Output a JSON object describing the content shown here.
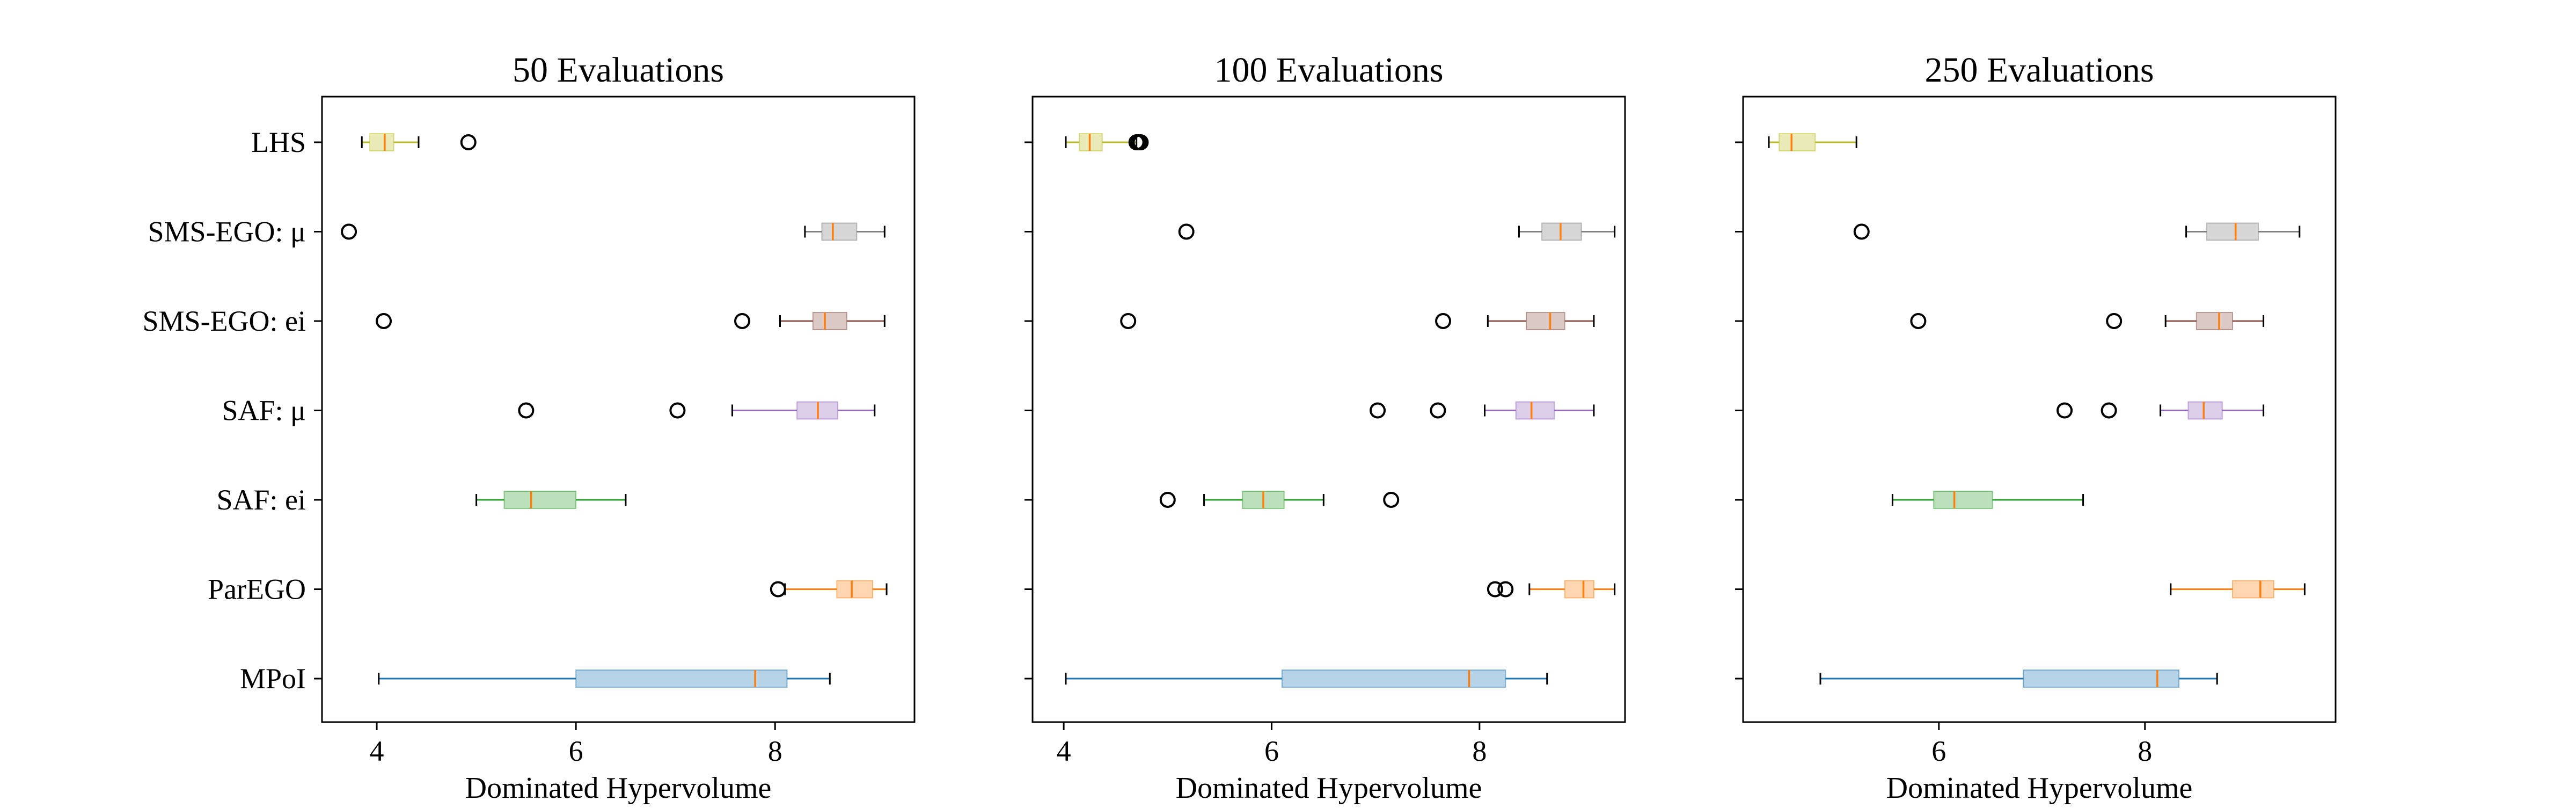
{
  "chart_data": [
    {
      "type": "boxplot",
      "orientation": "horizontal",
      "title": "50 Evaluations",
      "xlabel": "Dominated Hypervolume",
      "ylabel": "",
      "xlim": [
        3.45,
        9.4
      ],
      "xticks": [
        4,
        6,
        8
      ],
      "grid": false,
      "categories": [
        "LHS",
        "SMS-EGO: μ",
        "SMS-EGO: ei",
        "SAF: μ",
        "SAF: ei",
        "ParEGO",
        "MPoI"
      ],
      "boxes": [
        {
          "name": "LHS",
          "whislo": 3.85,
          "q1": 3.93,
          "med": 4.08,
          "q3": 4.17,
          "whishi": 4.42,
          "fliers": [
            4.92
          ]
        },
        {
          "name": "SMS-EGO: μ",
          "whislo": 8.3,
          "q1": 8.47,
          "med": 8.58,
          "q3": 8.82,
          "whishi": 9.1,
          "fliers": [
            3.72
          ]
        },
        {
          "name": "SMS-EGO: ei",
          "whislo": 8.05,
          "q1": 8.38,
          "med": 8.5,
          "q3": 8.72,
          "whishi": 9.1,
          "fliers": [
            4.07,
            7.67
          ]
        },
        {
          "name": "SAF: μ",
          "whislo": 7.57,
          "q1": 8.22,
          "med": 8.43,
          "q3": 8.63,
          "whishi": 9.0,
          "fliers": [
            5.5,
            7.02
          ]
        },
        {
          "name": "SAF: ei",
          "whislo": 5.0,
          "q1": 5.28,
          "med": 5.55,
          "q3": 6.0,
          "whishi": 6.5,
          "fliers": []
        },
        {
          "name": "ParEGO",
          "whislo": 8.1,
          "q1": 8.62,
          "med": 8.77,
          "q3": 8.98,
          "whishi": 9.12,
          "fliers": [
            8.03
          ]
        },
        {
          "name": "MPoI",
          "whislo": 4.02,
          "q1": 6.0,
          "med": 7.8,
          "q3": 8.12,
          "whishi": 8.55,
          "fliers": []
        }
      ]
    },
    {
      "type": "boxplot",
      "orientation": "horizontal",
      "title": "100 Evaluations",
      "xlabel": "Dominated Hypervolume",
      "ylabel": "",
      "xlim": [
        3.7,
        9.4
      ],
      "xticks": [
        4,
        6,
        8
      ],
      "grid": false,
      "categories": [
        "LHS",
        "SMS-EGO: μ",
        "SMS-EGO: ei",
        "SAF: μ",
        "SAF: ei",
        "ParEGO",
        "MPoI"
      ],
      "boxes": [
        {
          "name": "LHS",
          "whislo": 4.02,
          "q1": 4.15,
          "med": 4.25,
          "q3": 4.37,
          "whishi": 4.7,
          "fliers": [
            4.7,
            4.72,
            4.74
          ]
        },
        {
          "name": "SMS-EGO: μ",
          "whislo": 8.38,
          "q1": 8.6,
          "med": 8.78,
          "q3": 8.98,
          "whishi": 9.3,
          "fliers": [
            5.18
          ]
        },
        {
          "name": "SMS-EGO: ei",
          "whislo": 8.08,
          "q1": 8.45,
          "med": 8.68,
          "q3": 8.82,
          "whishi": 9.1,
          "fliers": [
            4.62,
            7.65
          ]
        },
        {
          "name": "SAF: μ",
          "whislo": 8.05,
          "q1": 8.35,
          "med": 8.5,
          "q3": 8.72,
          "whishi": 9.1,
          "fliers": [
            7.02,
            7.6
          ]
        },
        {
          "name": "SAF: ei",
          "whislo": 5.35,
          "q1": 5.72,
          "med": 5.92,
          "q3": 6.12,
          "whishi": 6.5,
          "fliers": [
            5.0,
            7.15
          ]
        },
        {
          "name": "ParEGO",
          "whislo": 8.48,
          "q1": 8.82,
          "med": 9.0,
          "q3": 9.1,
          "whishi": 9.3,
          "fliers": [
            8.15,
            8.25
          ]
        },
        {
          "name": "MPoI",
          "whislo": 4.02,
          "q1": 6.1,
          "med": 7.9,
          "q3": 8.25,
          "whishi": 8.65,
          "fliers": []
        }
      ]
    },
    {
      "type": "boxplot",
      "orientation": "horizontal",
      "title": "250 Evaluations",
      "xlabel": "Dominated Hypervolume",
      "ylabel": "",
      "xlim": [
        4.1,
        9.85
      ],
      "xticks": [
        6,
        8
      ],
      "grid": false,
      "categories": [
        "LHS",
        "SMS-EGO: μ",
        "SMS-EGO: ei",
        "SAF: μ",
        "SAF: ei",
        "ParEGO",
        "MPoI"
      ],
      "boxes": [
        {
          "name": "LHS",
          "whislo": 4.35,
          "q1": 4.45,
          "med": 4.57,
          "q3": 4.8,
          "whishi": 5.2,
          "fliers": []
        },
        {
          "name": "SMS-EGO: μ",
          "whislo": 8.4,
          "q1": 8.6,
          "med": 8.88,
          "q3": 9.1,
          "whishi": 9.5,
          "fliers": [
            5.25
          ]
        },
        {
          "name": "SMS-EGO: ei",
          "whislo": 8.2,
          "q1": 8.5,
          "med": 8.72,
          "q3": 8.85,
          "whishi": 9.15,
          "fliers": [
            5.8,
            7.7
          ]
        },
        {
          "name": "SAF: μ",
          "whislo": 8.15,
          "q1": 8.42,
          "med": 8.57,
          "q3": 8.75,
          "whishi": 9.15,
          "fliers": [
            7.22,
            7.65
          ]
        },
        {
          "name": "SAF: ei",
          "whislo": 5.55,
          "q1": 5.95,
          "med": 6.15,
          "q3": 6.52,
          "whishi": 7.4,
          "fliers": []
        },
        {
          "name": "ParEGO",
          "whislo": 8.25,
          "q1": 8.85,
          "med": 9.12,
          "q3": 9.25,
          "whishi": 9.55,
          "fliers": []
        },
        {
          "name": "MPoI",
          "whislo": 4.85,
          "q1": 6.82,
          "med": 8.12,
          "q3": 8.33,
          "whishi": 8.7,
          "fliers": []
        }
      ]
    }
  ],
  "series_colors": [
    "#1f77b4",
    "#ff7f0e",
    "#2ca02c",
    "#9467bd",
    "#8c564b",
    "#7f7f7f",
    "#bcbd22"
  ],
  "median_color": "#ff7f0e",
  "flier_color": "#000000"
}
